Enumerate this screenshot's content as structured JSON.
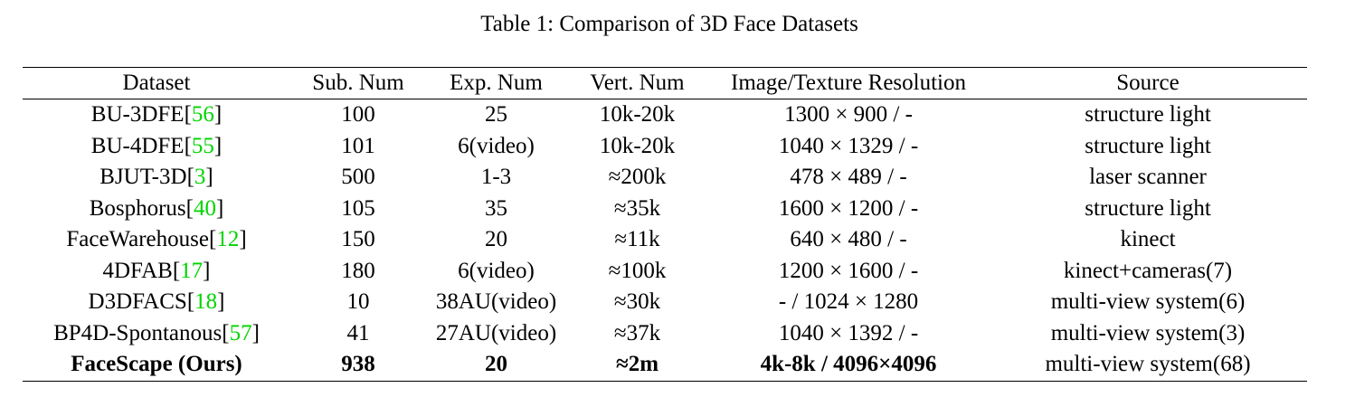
{
  "caption": "Table 1: Comparison of 3D Face Datasets",
  "headers": [
    "Dataset",
    "Sub. Num",
    "Exp. Num",
    "Vert. Num",
    "Image/Texture Resolution",
    "Source"
  ],
  "rows": [
    {
      "name": "BU-3DFE",
      "cite": "56",
      "sub": "100",
      "exp": "25",
      "vert": "10k-20k",
      "res": "1300 × 900 / -",
      "source": "structure light"
    },
    {
      "name": "BU-4DFE",
      "cite": "55",
      "sub": "101",
      "exp": "6(video)",
      "vert": "10k-20k",
      "res": "1040 × 1329 / -",
      "source": "structure light"
    },
    {
      "name": "BJUT-3D",
      "cite": "3",
      "sub": "500",
      "exp": "1-3",
      "vert": "≈200k",
      "res": "478 × 489 / -",
      "source": "laser scanner"
    },
    {
      "name": "Bosphorus",
      "cite": "40",
      "sub": "105",
      "exp": "35",
      "vert": "≈35k",
      "res": "1600 × 1200 / -",
      "source": "structure light"
    },
    {
      "name": "FaceWarehouse",
      "cite": "12",
      "sub": "150",
      "exp": "20",
      "vert": "≈11k",
      "res": "640 × 480 / -",
      "source": "kinect"
    },
    {
      "name": "4DFAB",
      "cite": "17",
      "sub": "180",
      "exp": "6(video)",
      "vert": "≈100k",
      "res": "1200 × 1600 / -",
      "source": "kinect+cameras(7)"
    },
    {
      "name": "D3DFACS",
      "cite": "18",
      "sub": "10",
      "exp": "38AU(video)",
      "vert": "≈30k",
      "res": "- / 1024 × 1280",
      "source": "multi-view system(6)"
    },
    {
      "name": "BP4D-Spontanous",
      "cite": "57",
      "sub": "41",
      "exp": "27AU(video)",
      "vert": "≈37k",
      "res": "1040 × 1392 / -",
      "source": "multi-view system(3)"
    },
    {
      "name": "FaceScape (Ours)",
      "cite": "",
      "sub": "938",
      "exp": "20",
      "vert": "≈2m",
      "res": "4k-8k / 4096×4096",
      "source": "multi-view system(68)"
    }
  ],
  "colors": {
    "citation": "#00d400",
    "text": "#000000"
  }
}
